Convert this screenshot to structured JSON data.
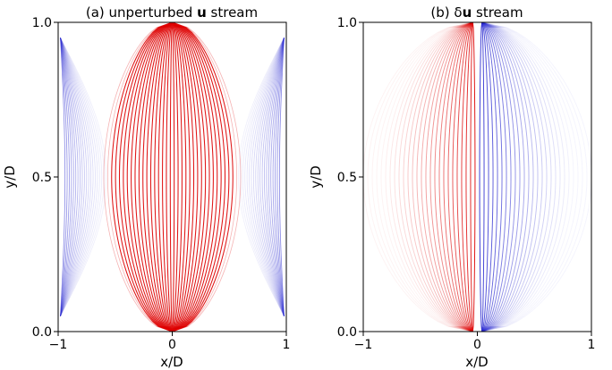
{
  "chart_data": [
    {
      "type": "streamplot",
      "title_prefix": "(a) unperturbed ",
      "title_bold": "u",
      "title_suffix": " stream",
      "xlabel": "x/D",
      "ylabel": "y/D",
      "xlim": [
        -1,
        1
      ],
      "ylim": [
        0,
        1
      ],
      "xticks": [
        -1,
        0,
        1
      ],
      "xtick_labels": [
        "−1",
        "0",
        "1"
      ],
      "yticks": [
        0,
        0.5,
        1
      ],
      "ytick_labels": [
        "0.0",
        "0.5",
        "1.0"
      ],
      "grid": false,
      "colors": {
        "positive": "#dd0000",
        "negative": "#2a2ad0"
      },
      "field": "unperturbed"
    },
    {
      "type": "streamplot",
      "title_prefix": "(b) δ",
      "title_bold": "u",
      "title_suffix": " stream",
      "xlabel": "x/D",
      "ylabel": "y/D",
      "xlim": [
        -1,
        1
      ],
      "ylim": [
        0,
        1
      ],
      "xticks": [
        -1,
        0,
        1
      ],
      "xtick_labels": [
        "−1",
        "0",
        "1"
      ],
      "yticks": [
        0,
        0.5,
        1
      ],
      "ytick_labels": [
        "0.0",
        "0.5",
        "1.0"
      ],
      "grid": false,
      "colors": {
        "positive": "#dd0000",
        "negative": "#2a2ad0"
      },
      "field": "perturbation"
    }
  ]
}
